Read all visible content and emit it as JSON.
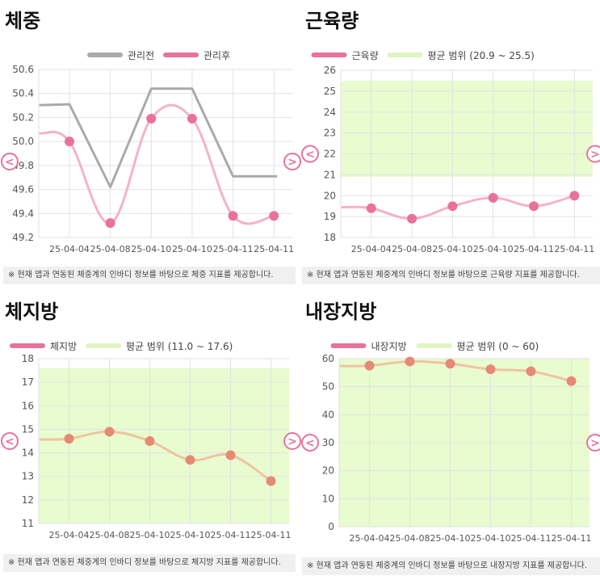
{
  "note_prefix": "※",
  "nav": {
    "prev_label": "<",
    "next_label": ">"
  },
  "charts": [
    {
      "id": "weight",
      "title": "체중",
      "note": "※ 현재 앱과 연동된 체중계의 인바디 정보를 바탕으로 체중 지표를 제공합니다.",
      "chart_data": {
        "type": "line",
        "categories": [
          "25-04-04",
          "25-04-08",
          "25-04-10",
          "25-04-10",
          "25-04-11",
          "25-04-11"
        ],
        "ylim": [
          49.2,
          50.6
        ],
        "yticks": [
          "49.2",
          "49.4",
          "49.6",
          "49.8",
          "50.0",
          "50.2",
          "50.4",
          "50.6"
        ],
        "legend_position": "top",
        "grid": true,
        "series": [
          {
            "name": "관리전",
            "color": "#aaaaaa",
            "values": [
              50.31,
              49.62,
              50.44,
              50.44,
              49.71,
              49.71
            ],
            "markers": false,
            "curve": false
          },
          {
            "name": "관리후",
            "color": "#e8729a",
            "values": [
              50.0,
              49.32,
              50.19,
              50.19,
              49.38,
              49.38
            ],
            "markers": true,
            "curve": true
          }
        ]
      }
    },
    {
      "id": "muscle",
      "title": "근육량",
      "note": "※ 현재 앱과 연동된 체중계의 인바디 정보를 바탕으로 근육량 지표를 제공합니다.",
      "chart_data": {
        "type": "line",
        "categories": [
          "25-04-04",
          "25-04-08",
          "25-04-10",
          "25-04-10",
          "25-04-11",
          "25-04-11"
        ],
        "ylim": [
          18,
          26
        ],
        "yticks": [
          "18",
          "19",
          "20",
          "21",
          "22",
          "23",
          "24",
          "25",
          "26"
        ],
        "legend_position": "top",
        "grid": true,
        "band": {
          "name": "평균 범위 (20.9 ~ 25.5)",
          "from": 20.9,
          "to": 25.5,
          "color": "#e8fccf"
        },
        "series": [
          {
            "name": "근육량",
            "color": "#e8729a",
            "values": [
              19.4,
              18.9,
              19.5,
              19.9,
              19.5,
              20.0
            ],
            "markers": true,
            "curve": true
          }
        ]
      }
    },
    {
      "id": "fat",
      "title": "체지방",
      "note": "※ 현재 앱과 연동된 체중계의 인바디 정보를 바탕으로 체지방 지표를 제공합니다.",
      "chart_data": {
        "type": "line",
        "categories": [
          "25-04-04",
          "25-04-08",
          "25-04-10",
          "25-04-10",
          "25-04-11",
          "25-04-11"
        ],
        "ylim": [
          11,
          18
        ],
        "yticks": [
          "11",
          "12",
          "13",
          "14",
          "15",
          "16",
          "17",
          "18"
        ],
        "legend_position": "top",
        "grid": true,
        "band": {
          "name": "평균 범위 (11.0 ~ 17.6)",
          "from": 11.0,
          "to": 17.6,
          "color": "#e8fccf"
        },
        "series": [
          {
            "name": "체지방",
            "color": "#e8729a",
            "line_color": "#efc4a0",
            "marker_color": "#e58a74",
            "values": [
              14.6,
              14.9,
              14.5,
              13.7,
              13.9,
              12.8
            ],
            "markers": true,
            "curve": true
          }
        ]
      }
    },
    {
      "id": "visceral",
      "title": "내장지방",
      "note": "※ 현재 앱과 연동된 체중계의 인바디 정보를 바탕으로 내장지방 지표를 제공합니다.",
      "chart_data": {
        "type": "line",
        "categories": [
          "25-04-04",
          "25-04-08",
          "25-04-10",
          "25-04-10",
          "25-04-11",
          "25-04-11"
        ],
        "ylim": [
          0,
          60
        ],
        "yticks": [
          "0",
          "10",
          "20",
          "30",
          "40",
          "50",
          "60"
        ],
        "legend_position": "top",
        "grid": true,
        "band": {
          "name": "평균 범위 (0 ~ 60)",
          "from": 0,
          "to": 60,
          "color": "#e8fccf"
        },
        "series": [
          {
            "name": "내장지방",
            "color": "#e8729a",
            "line_color": "#efc4a0",
            "marker_color": "#e58a74",
            "values": [
              57.5,
              59,
              58.2,
              56.2,
              55.5,
              52
            ],
            "markers": true,
            "curve": true
          }
        ]
      }
    }
  ]
}
